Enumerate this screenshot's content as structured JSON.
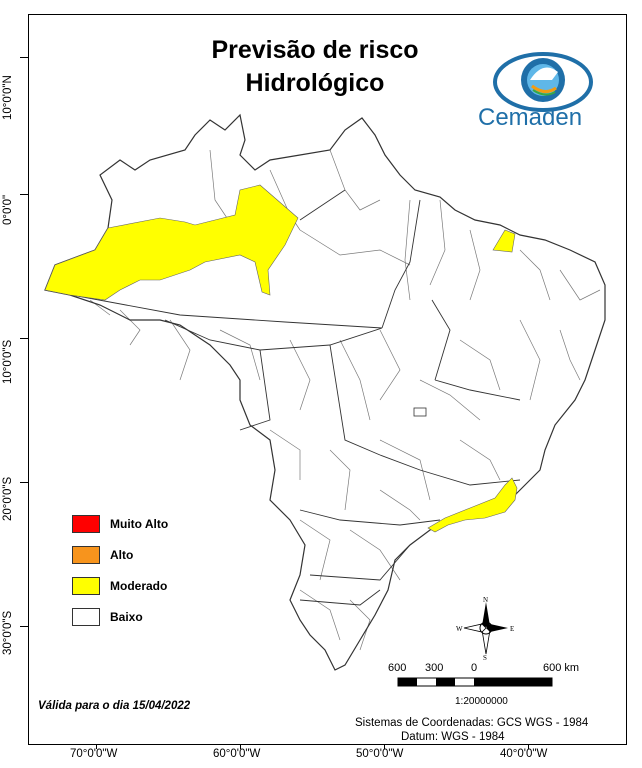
{
  "title": {
    "line1": "Previsão de risco",
    "line2": "Hidrológico"
  },
  "logo": {
    "name": "Cemaden",
    "icon": "cemaden-eye-logo"
  },
  "latitude_labels": [
    "10°0'0\"N",
    "0°0'0\"",
    "10°0'0\"S",
    "20°0'0\"S",
    "30°0'0\"S"
  ],
  "longitude_labels": [
    "70°0'0\"W",
    "60°0'0\"W",
    "50°0'0\"W",
    "40°0'0\"W"
  ],
  "legend": {
    "items": [
      {
        "label": "Muito Alto",
        "color": "#ff0000"
      },
      {
        "label": "Alto",
        "color": "#f7941d"
      },
      {
        "label": "Moderado",
        "color": "#ffff00"
      },
      {
        "label": "Baixo",
        "color": "#ffffff"
      }
    ]
  },
  "valid_date": "Válida para o dia 15/04/2022",
  "scale": {
    "labels": [
      "600",
      "300",
      "0",
      "600 km"
    ],
    "ratio": "1:20000000"
  },
  "compass": {
    "n": "N",
    "s": "S",
    "e": "E",
    "w": "W"
  },
  "coordinate_system": {
    "line1": "Sistemas de Coordenadas: GCS WGS - 1984",
    "line2": "Datum: WGS - 1984"
  },
  "colors": {
    "moderate": "#ffff00",
    "map_border": "#555555",
    "logo_blue": "#1f6fa8"
  }
}
